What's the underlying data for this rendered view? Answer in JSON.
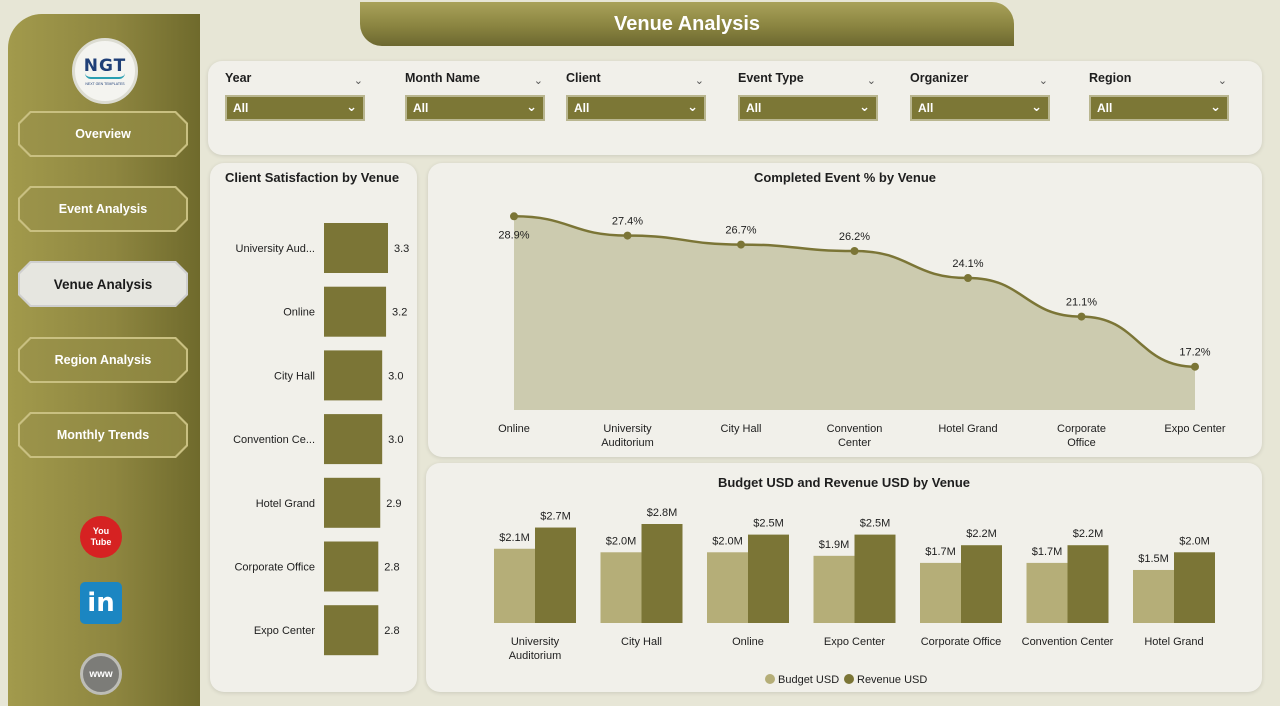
{
  "sidebar": {
    "logo": {
      "mark": "NGT",
      "sub": "NEXT GEN TEMPLATES"
    },
    "nav": [
      {
        "label": "Overview"
      },
      {
        "label": "Event Analysis"
      },
      {
        "label": "Venue Analysis"
      },
      {
        "label": "Region Analysis"
      },
      {
        "label": "Monthly Trends"
      }
    ],
    "active": "Venue Analysis",
    "social": {
      "youtube_icon": "youtube-icon",
      "linkedin_icon": "linkedin-icon",
      "website_icon": "globe-icon",
      "youtube_text_1": "You",
      "youtube_text_2": "Tube",
      "linkedin_text": "in",
      "website_text": "www"
    }
  },
  "header": {
    "title": "Venue Analysis"
  },
  "filters": [
    {
      "label": "Year",
      "value": "All"
    },
    {
      "label": "Month Name",
      "value": "All"
    },
    {
      "label": "Client",
      "value": "All"
    },
    {
      "label": "Event Type",
      "value": "All"
    },
    {
      "label": "Organizer",
      "value": "All"
    },
    {
      "label": "Region",
      "value": "All"
    }
  ],
  "colors": {
    "accent": "#7b7536",
    "accent_light": "#b5ae78",
    "area_fill": "#c8c6a9",
    "background": "#e7e6d6"
  },
  "chart_data": [
    {
      "type": "bar",
      "orientation": "horizontal",
      "title": "Client Satisfaction by Venue",
      "categories": [
        "University Aud...",
        "Online",
        "City Hall",
        "Convention Ce...",
        "Hotel Grand",
        "Corporate Office",
        "Expo Center"
      ],
      "values": [
        3.3,
        3.2,
        3.0,
        3.0,
        2.9,
        2.8,
        2.8
      ],
      "value_labels": [
        "3.3",
        "3.2",
        "3.0",
        "3.0",
        "2.9",
        "2.8",
        "2.8"
      ],
      "xlim": [
        0,
        3.3
      ],
      "grid": false
    },
    {
      "type": "area",
      "title": "Completed Event % by Venue",
      "categories": [
        "Online",
        "University Auditorium",
        "City Hall",
        "Convention Center",
        "Hotel Grand",
        "Corporate Office",
        "Expo Center"
      ],
      "values": [
        28.9,
        27.4,
        26.7,
        26.2,
        24.1,
        21.1,
        17.2
      ],
      "value_labels": [
        "28.9%",
        "27.4%",
        "26.7%",
        "26.2%",
        "24.1%",
        "21.1%",
        "17.2%"
      ],
      "ylim": [
        15,
        29
      ],
      "grid": false
    },
    {
      "type": "bar",
      "title": "Budget USD and Revenue USD by Venue",
      "categories": [
        "University Auditorium",
        "City Hall",
        "Online",
        "Expo Center",
        "Corporate Office",
        "Convention Center",
        "Hotel Grand"
      ],
      "series": [
        {
          "name": "Budget USD",
          "values": [
            2.1,
            2.0,
            2.0,
            1.9,
            1.7,
            1.7,
            1.5
          ],
          "labels": [
            "$2.1M",
            "$2.0M",
            "$2.0M",
            "$1.9M",
            "$1.7M",
            "$1.7M",
            "$1.5M"
          ],
          "color": "#b5ae78"
        },
        {
          "name": "Revenue USD",
          "values": [
            2.7,
            2.8,
            2.5,
            2.5,
            2.2,
            2.2,
            2.0
          ],
          "labels": [
            "$2.7M",
            "$2.8M",
            "$2.5M",
            "$2.5M",
            "$2.2M",
            "$2.2M",
            "$2.0M"
          ],
          "color": "#7b7536"
        }
      ],
      "ylim": [
        0,
        2.8
      ],
      "legend": "bottom-center",
      "grid": false
    }
  ]
}
